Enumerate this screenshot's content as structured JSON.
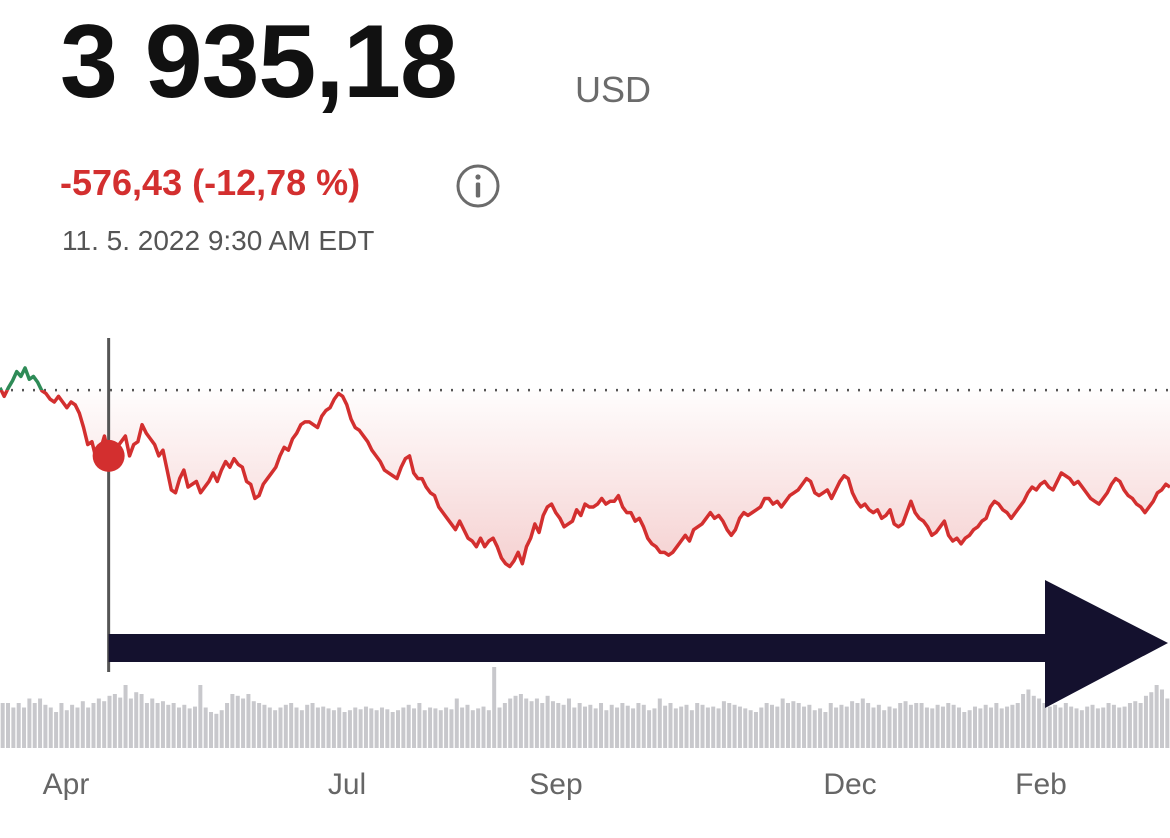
{
  "quote": {
    "price": "3 935,18",
    "currency": "USD",
    "change": "-576,43 (-12,78 %)",
    "timestamp": "11. 5. 2022 9:30 AM EDT",
    "info_icon": "info-circle-icon"
  },
  "colors": {
    "down": "#d32f2f",
    "up": "#2e8b57",
    "price_text": "#111111",
    "muted_text": "#6b6b6b",
    "crosshair": "#555555",
    "volume": "#c8c8cc",
    "arrow": "#14112e"
  },
  "chart_data": {
    "type": "line",
    "x_tick_labels": [
      "Apr",
      "Jul",
      "Sep",
      "Dec",
      "Feb"
    ],
    "ylim": [
      3490,
      4900
    ],
    "baseline": 4511.61,
    "selected_index": 26,
    "annotation": "arrow-right",
    "series": [
      {
        "values": [
          4520,
          4490,
          4520,
          4545,
          4577,
          4560,
          4590,
          4550,
          4560,
          4540,
          4510,
          4500,
          4480,
          4470,
          4490,
          4470,
          4450,
          4470,
          4460,
          4430,
          4380,
          4320,
          4330,
          4270,
          4300,
          4350,
          4280,
          4250,
          4310,
          4330,
          4350,
          4280,
          4320,
          4330,
          4390,
          4360,
          4340,
          4320,
          4280,
          4300,
          4230,
          4160,
          4150,
          4200,
          4230,
          4170,
          4180,
          4190,
          4150,
          4170,
          4190,
          4220,
          4190,
          4230,
          4260,
          4240,
          4270,
          4250,
          4240,
          4190,
          4180,
          4130,
          4140,
          4180,
          4200,
          4220,
          4240,
          4280,
          4310,
          4300,
          4340,
          4360,
          4390,
          4400,
          4400,
          4390,
          4380,
          4420,
          4440,
          4450,
          4480,
          4500,
          4490,
          4460,
          4410,
          4380,
          4370,
          4350,
          4330,
          4300,
          4280,
          4260,
          4230,
          4220,
          4210,
          4200,
          4240,
          4270,
          4280,
          4220,
          4200,
          4200,
          4170,
          4150,
          4140,
          4100,
          4080,
          4060,
          4040,
          4020,
          4050,
          4020,
          3990,
          3980,
          3960,
          3990,
          3960,
          3980,
          3990,
          3960,
          3920,
          3900,
          3890,
          3910,
          3940,
          3900,
          3960,
          3990,
          4040,
          4010,
          4070,
          4100,
          4110,
          4080,
          4060,
          4030,
          4040,
          4050,
          4090,
          4070,
          4110,
          4100,
          4100,
          4110,
          4130,
          4110,
          4120,
          4120,
          4140,
          4100,
          4080,
          4080,
          4050,
          4060,
          4030,
          3990,
          3970,
          3960,
          3940,
          3940,
          3930,
          3940,
          3960,
          3980,
          4000,
          3980,
          4020,
          4030,
          4040,
          4060,
          4080,
          4060,
          4070,
          4050,
          4020,
          4000,
          4020,
          4060,
          4080,
          4070,
          4080,
          4090,
          4100,
          4130,
          4130,
          4110,
          4120,
          4100,
          4120,
          4140,
          4150,
          4160,
          4180,
          4200,
          4190,
          4150,
          4140,
          4150,
          4160,
          4130,
          4160,
          4190,
          4210,
          4200,
          4150,
          4120,
          4100,
          4110,
          4090,
          4080,
          4090,
          4060,
          4070,
          4090,
          4040,
          4030,
          4040,
          4080,
          4120,
          4080,
          4060,
          4050,
          4030,
          4000,
          4010,
          4030,
          4050,
          4000,
          3980,
          3990,
          3970,
          3990,
          4000,
          4020,
          4030,
          4050,
          4060,
          4100,
          4120,
          4110,
          4090,
          4080,
          4060,
          4080,
          4100,
          4120,
          4150,
          4170,
          4160,
          4180,
          4190,
          4170,
          4160,
          4190,
          4220,
          4210,
          4200,
          4180,
          4190,
          4170,
          4150,
          4130,
          4120,
          4110,
          4130,
          4150,
          4180,
          4200,
          4190,
          4160,
          4140,
          4130,
          4110,
          4100,
          4080,
          4100,
          4120,
          4150,
          4160,
          4180,
          4170
        ]
      }
    ],
    "volume": [
      0.5,
      0.5,
      0.45,
      0.5,
      0.45,
      0.55,
      0.5,
      0.55,
      0.48,
      0.45,
      0.4,
      0.5,
      0.42,
      0.48,
      0.45,
      0.52,
      0.45,
      0.5,
      0.55,
      0.52,
      0.58,
      0.6,
      0.56,
      0.7,
      0.55,
      0.62,
      0.6,
      0.5,
      0.55,
      0.5,
      0.52,
      0.48,
      0.5,
      0.45,
      0.48,
      0.44,
      0.46,
      0.7,
      0.45,
      0.4,
      0.38,
      0.42,
      0.5,
      0.6,
      0.58,
      0.55,
      0.6,
      0.52,
      0.5,
      0.48,
      0.45,
      0.42,
      0.45,
      0.48,
      0.5,
      0.45,
      0.42,
      0.48,
      0.5,
      0.45,
      0.46,
      0.44,
      0.42,
      0.45,
      0.4,
      0.42,
      0.45,
      0.43,
      0.46,
      0.44,
      0.42,
      0.45,
      0.43,
      0.4,
      0.42,
      0.45,
      0.48,
      0.44,
      0.5,
      0.42,
      0.45,
      0.44,
      0.42,
      0.45,
      0.43,
      0.55,
      0.45,
      0.48,
      0.42,
      0.44,
      0.46,
      0.42,
      0.9,
      0.45,
      0.5,
      0.55,
      0.58,
      0.6,
      0.55,
      0.52,
      0.55,
      0.5,
      0.58,
      0.52,
      0.5,
      0.48,
      0.55,
      0.45,
      0.5,
      0.46,
      0.48,
      0.44,
      0.5,
      0.42,
      0.48,
      0.45,
      0.5,
      0.47,
      0.44,
      0.5,
      0.48,
      0.42,
      0.44,
      0.55,
      0.47,
      0.5,
      0.44,
      0.46,
      0.48,
      0.42,
      0.5,
      0.48,
      0.45,
      0.46,
      0.44,
      0.52,
      0.5,
      0.48,
      0.46,
      0.44,
      0.42,
      0.4,
      0.45,
      0.5,
      0.48,
      0.46,
      0.55,
      0.5,
      0.52,
      0.5,
      0.46,
      0.48,
      0.42,
      0.44,
      0.4,
      0.5,
      0.45,
      0.48,
      0.46,
      0.52,
      0.5,
      0.55,
      0.5,
      0.45,
      0.48,
      0.42,
      0.46,
      0.44,
      0.5,
      0.52,
      0.48,
      0.5,
      0.5,
      0.45,
      0.44,
      0.48,
      0.46,
      0.5,
      0.48,
      0.45,
      0.4,
      0.42,
      0.46,
      0.44,
      0.48,
      0.45,
      0.5,
      0.44,
      0.46,
      0.48,
      0.5,
      0.6,
      0.65,
      0.58,
      0.55,
      0.5,
      0.46,
      0.48,
      0.45,
      0.5,
      0.46,
      0.44,
      0.42,
      0.46,
      0.48,
      0.44,
      0.45,
      0.5,
      0.48,
      0.45,
      0.46,
      0.5,
      0.52,
      0.5,
      0.58,
      0.62,
      0.7,
      0.65,
      0.55
    ]
  }
}
